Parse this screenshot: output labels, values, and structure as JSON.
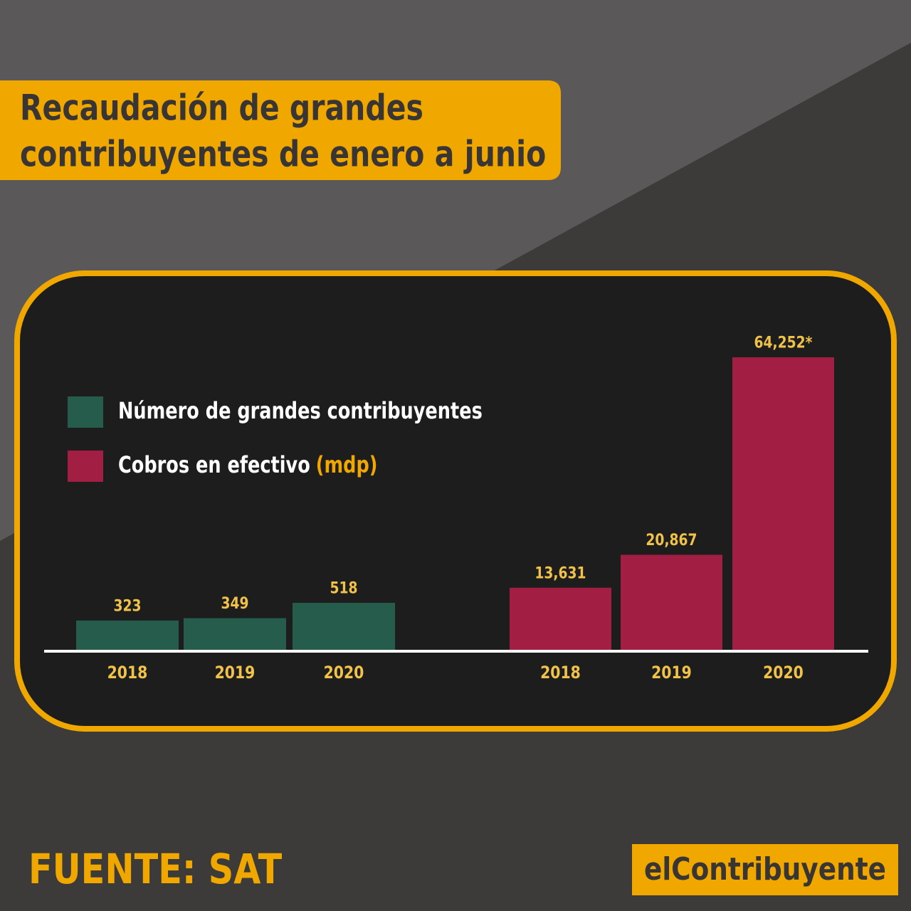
{
  "chart_data": {
    "type": "bar",
    "title": [
      "Recaudación de grandes",
      "contribuyentes de enero a junio"
    ],
    "categories": [
      "2018",
      "2019",
      "2020"
    ],
    "series": [
      {
        "name": "Número de grandes contribuyentes",
        "color": "#255c4c",
        "values": [
          323,
          349,
          518
        ]
      },
      {
        "name": "Cobros en efectivo",
        "unit": "(mdp)",
        "color": "#a21f43",
        "values": [
          13631,
          20867,
          64252
        ],
        "value_labels": [
          "13,631",
          "20,867",
          "64,252*"
        ]
      }
    ],
    "source": "FUENTE: SAT",
    "brand": "elContribuyente"
  }
}
